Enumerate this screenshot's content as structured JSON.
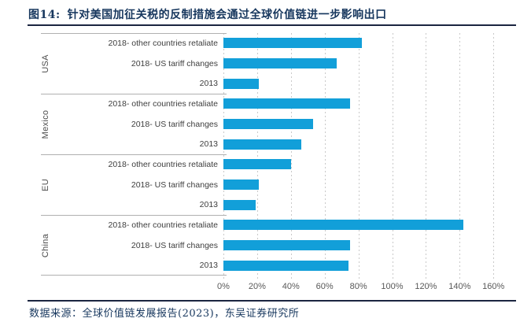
{
  "title": {
    "prefix": "图14:",
    "text": "针对美国加征关税的反制措施会通过全球价值链进一步影响出口"
  },
  "source_text": "数据来源：全球价值链发展报告(2023)，东吴证券研究所",
  "colors": {
    "bar": "#129fd9",
    "title_navy": "#17375e",
    "rule_navy": "#1b2540",
    "gridline": "#c9c9c9",
    "group_separator": "#b0b0b0",
    "row_label": "#3d3d3d",
    "axis_label": "#595959"
  },
  "chart_data": {
    "type": "bar",
    "orientation": "horizontal",
    "unit": "percent",
    "title": "针对美国加征关税的反制措施会通过全球价值链进一步影响出口",
    "xlabel": "",
    "ylabel": "",
    "xlim": [
      0,
      160
    ],
    "grid": true,
    "legend_position": "none",
    "x_ticks": [
      "0%",
      "20%",
      "40%",
      "60%",
      "80%",
      "100%",
      "120%",
      "140%",
      "160%"
    ],
    "groups": [
      {
        "name": "USA",
        "rows": [
          {
            "label": "2018- other countries retaliate",
            "value": 82
          },
          {
            "label": "2018- US tariff changes",
            "value": 67
          },
          {
            "label": "2013",
            "value": 21
          }
        ]
      },
      {
        "name": "Mexico",
        "rows": [
          {
            "label": "2018- other countries retaliate",
            "value": 75
          },
          {
            "label": "2018- US tariff changes",
            "value": 53
          },
          {
            "label": "2013",
            "value": 46
          }
        ]
      },
      {
        "name": "EU",
        "rows": [
          {
            "label": "2018- other countries retaliate",
            "value": 40
          },
          {
            "label": "2018- US tariff changes",
            "value": 21
          },
          {
            "label": "2013",
            "value": 19
          }
        ]
      },
      {
        "name": "China",
        "rows": [
          {
            "label": "2018- other countries retaliate",
            "value": 142
          },
          {
            "label": "2018- US tariff changes",
            "value": 75
          },
          {
            "label": "2013",
            "value": 74
          }
        ]
      }
    ]
  }
}
